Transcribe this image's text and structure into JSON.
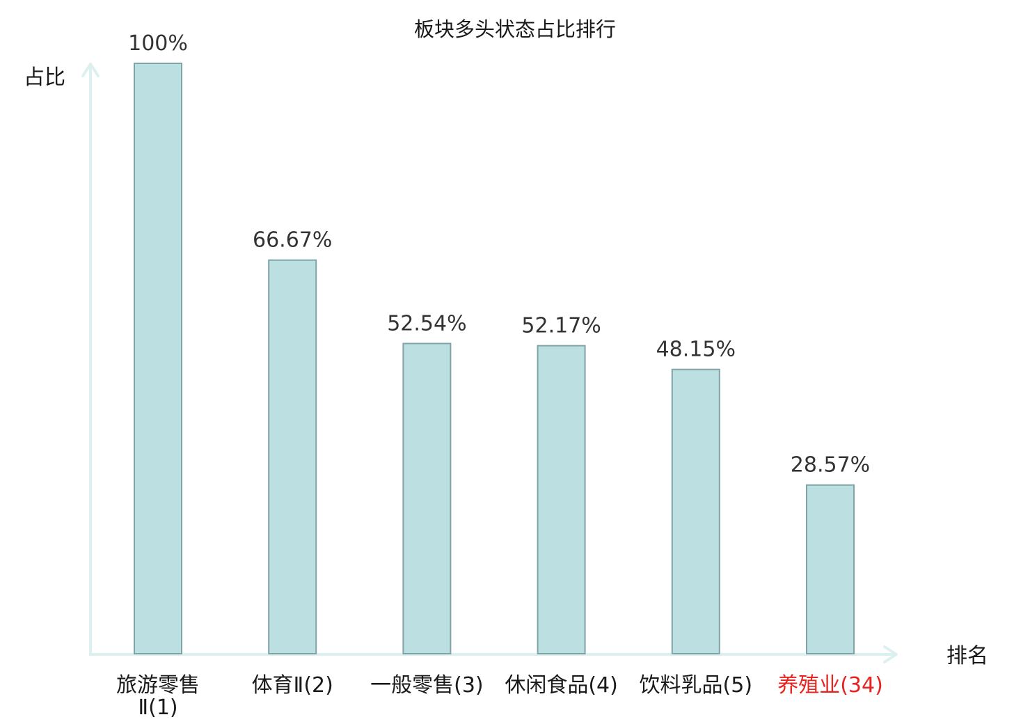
{
  "chart_data": {
    "type": "bar",
    "title": "板块多头状态占比排行",
    "ylabel": "占比",
    "xlabel": "排名",
    "ylim": [
      0,
      100
    ],
    "grid": false,
    "categories": [
      {
        "label_lines": [
          "旅游零售",
          "Ⅱ(1)"
        ],
        "highlight": false
      },
      {
        "label_lines": [
          "体育Ⅱ(2)"
        ],
        "highlight": false
      },
      {
        "label_lines": [
          "一般零售(3)"
        ],
        "highlight": false
      },
      {
        "label_lines": [
          "休闲食品(4)"
        ],
        "highlight": false
      },
      {
        "label_lines": [
          "饮料乳品(5)"
        ],
        "highlight": false
      },
      {
        "label_lines": [
          "养殖业(34)"
        ],
        "highlight": true
      }
    ],
    "values": [
      100,
      66.67,
      52.54,
      52.17,
      48.15,
      28.57
    ],
    "value_labels": [
      "100%",
      "66.67%",
      "52.54%",
      "52.17%",
      "48.15%",
      "28.57%"
    ],
    "colors": {
      "bar_fill": "#bce0e2",
      "bar_stroke": "#7fa3a6",
      "axis": "#dcf1ef",
      "label_default": "#1a1a1a",
      "label_highlight": "#e8231f"
    }
  }
}
